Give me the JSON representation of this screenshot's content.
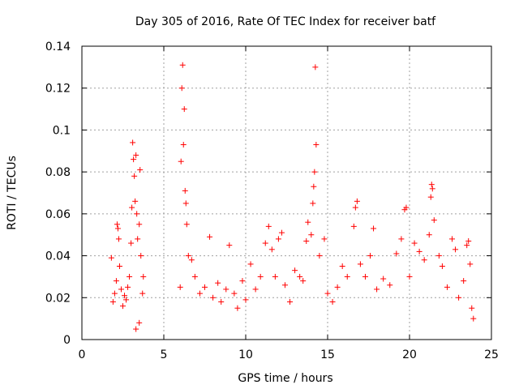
{
  "chart_data": {
    "type": "scatter",
    "title": "Day 305 of 2016, Rate Of TEC Index for receiver batf",
    "xlabel": "GPS time / hours",
    "ylabel": "ROTI / TECUs",
    "xlim": [
      0,
      25
    ],
    "ylim": [
      0,
      0.14
    ],
    "x_ticks": [
      0,
      5,
      10,
      15,
      20,
      25
    ],
    "x_tick_labels": [
      "0",
      "5",
      "10",
      "15",
      "20",
      "25"
    ],
    "y_ticks": [
      0,
      0.02,
      0.04,
      0.06,
      0.08,
      0.1,
      0.12,
      0.14
    ],
    "y_tick_labels": [
      "0",
      "0.02",
      "0.04",
      "0.06",
      "0.08",
      "0.1",
      "0.12",
      "0.14"
    ],
    "grid": true,
    "marker": "+",
    "marker_color": "#ff0000",
    "series": [
      {
        "name": "ROTI",
        "points": [
          [
            1.8,
            0.039
          ],
          [
            1.9,
            0.018
          ],
          [
            2.0,
            0.022
          ],
          [
            2.1,
            0.028
          ],
          [
            2.15,
            0.055
          ],
          [
            2.2,
            0.053
          ],
          [
            2.25,
            0.048
          ],
          [
            2.3,
            0.035
          ],
          [
            2.4,
            0.024
          ],
          [
            2.5,
            0.016
          ],
          [
            2.6,
            0.021
          ],
          [
            2.7,
            0.019
          ],
          [
            2.8,
            0.025
          ],
          [
            2.9,
            0.03
          ],
          [
            3.0,
            0.046
          ],
          [
            3.05,
            0.063
          ],
          [
            3.1,
            0.094
          ],
          [
            3.15,
            0.086
          ],
          [
            3.2,
            0.078
          ],
          [
            3.25,
            0.066
          ],
          [
            3.3,
            0.088
          ],
          [
            3.35,
            0.06
          ],
          [
            3.4,
            0.048
          ],
          [
            3.5,
            0.055
          ],
          [
            3.55,
            0.081
          ],
          [
            3.6,
            0.04
          ],
          [
            3.7,
            0.022
          ],
          [
            3.75,
            0.03
          ],
          [
            3.3,
            0.005
          ],
          [
            3.5,
            0.008
          ],
          [
            6.0,
            0.025
          ],
          [
            6.05,
            0.085
          ],
          [
            6.1,
            0.12
          ],
          [
            6.15,
            0.131
          ],
          [
            6.2,
            0.093
          ],
          [
            6.25,
            0.11
          ],
          [
            6.3,
            0.071
          ],
          [
            6.35,
            0.065
          ],
          [
            6.4,
            0.055
          ],
          [
            6.5,
            0.04
          ],
          [
            6.7,
            0.038
          ],
          [
            6.9,
            0.03
          ],
          [
            7.2,
            0.022
          ],
          [
            7.5,
            0.025
          ],
          [
            7.8,
            0.049
          ],
          [
            8.0,
            0.02
          ],
          [
            8.3,
            0.027
          ],
          [
            8.5,
            0.018
          ],
          [
            8.8,
            0.024
          ],
          [
            9.0,
            0.045
          ],
          [
            9.3,
            0.022
          ],
          [
            9.5,
            0.015
          ],
          [
            9.8,
            0.028
          ],
          [
            10.0,
            0.019
          ],
          [
            10.3,
            0.036
          ],
          [
            10.6,
            0.024
          ],
          [
            10.9,
            0.03
          ],
          [
            11.2,
            0.046
          ],
          [
            11.4,
            0.054
          ],
          [
            11.6,
            0.043
          ],
          [
            11.8,
            0.03
          ],
          [
            12.0,
            0.048
          ],
          [
            12.2,
            0.051
          ],
          [
            12.4,
            0.026
          ],
          [
            12.7,
            0.018
          ],
          [
            13.0,
            0.033
          ],
          [
            13.3,
            0.03
          ],
          [
            13.5,
            0.028
          ],
          [
            13.7,
            0.047
          ],
          [
            13.8,
            0.056
          ],
          [
            14.0,
            0.05
          ],
          [
            14.1,
            0.065
          ],
          [
            14.15,
            0.073
          ],
          [
            14.2,
            0.08
          ],
          [
            14.25,
            0.13
          ],
          [
            14.3,
            0.093
          ],
          [
            14.5,
            0.04
          ],
          [
            14.8,
            0.048
          ],
          [
            15.0,
            0.022
          ],
          [
            15.3,
            0.018
          ],
          [
            15.6,
            0.025
          ],
          [
            15.9,
            0.035
          ],
          [
            16.2,
            0.03
          ],
          [
            16.6,
            0.054
          ],
          [
            16.7,
            0.063
          ],
          [
            16.8,
            0.066
          ],
          [
            17.0,
            0.036
          ],
          [
            17.3,
            0.03
          ],
          [
            17.6,
            0.04
          ],
          [
            17.8,
            0.053
          ],
          [
            18.0,
            0.024
          ],
          [
            18.4,
            0.029
          ],
          [
            18.8,
            0.026
          ],
          [
            19.2,
            0.041
          ],
          [
            19.5,
            0.048
          ],
          [
            19.7,
            0.062
          ],
          [
            19.8,
            0.063
          ],
          [
            20.0,
            0.03
          ],
          [
            20.3,
            0.046
          ],
          [
            20.6,
            0.042
          ],
          [
            20.9,
            0.038
          ],
          [
            21.2,
            0.05
          ],
          [
            21.3,
            0.068
          ],
          [
            21.35,
            0.074
          ],
          [
            21.4,
            0.072
          ],
          [
            21.5,
            0.057
          ],
          [
            21.8,
            0.04
          ],
          [
            22.0,
            0.035
          ],
          [
            22.3,
            0.025
          ],
          [
            22.6,
            0.048
          ],
          [
            22.8,
            0.043
          ],
          [
            23.0,
            0.02
          ],
          [
            23.3,
            0.028
          ],
          [
            23.5,
            0.045
          ],
          [
            23.6,
            0.047
          ],
          [
            23.7,
            0.036
          ],
          [
            23.8,
            0.015
          ],
          [
            23.9,
            0.01
          ]
        ]
      }
    ]
  }
}
